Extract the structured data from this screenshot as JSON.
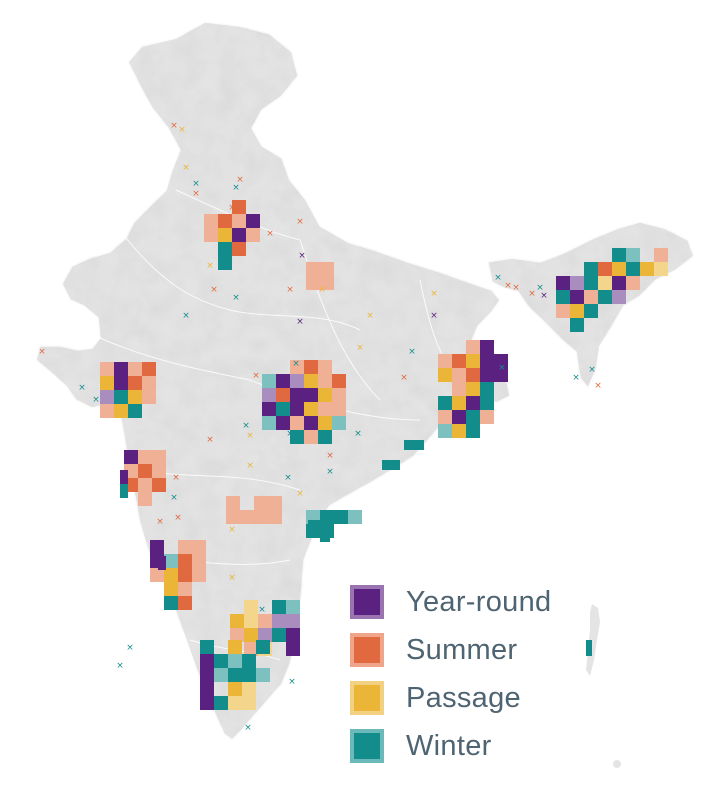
{
  "legend": {
    "items": [
      {
        "label": "Year-round",
        "color": "#5b2180",
        "border": "#9a73b1"
      },
      {
        "label": "Summer",
        "color": "#e0693f",
        "border": "#eea58a"
      },
      {
        "label": "Passage",
        "color": "#ebb537",
        "border": "#f2d282"
      },
      {
        "label": "Winter",
        "color": "#138c8c",
        "border": "#6bb9b9"
      }
    ]
  },
  "map": {
    "land_color": "#e6e6e6",
    "border_color": "#ffffff",
    "marker_icon": "cross-marker",
    "categories_order": [
      "Year-round",
      "Summer",
      "Passage",
      "Winter"
    ]
  }
}
